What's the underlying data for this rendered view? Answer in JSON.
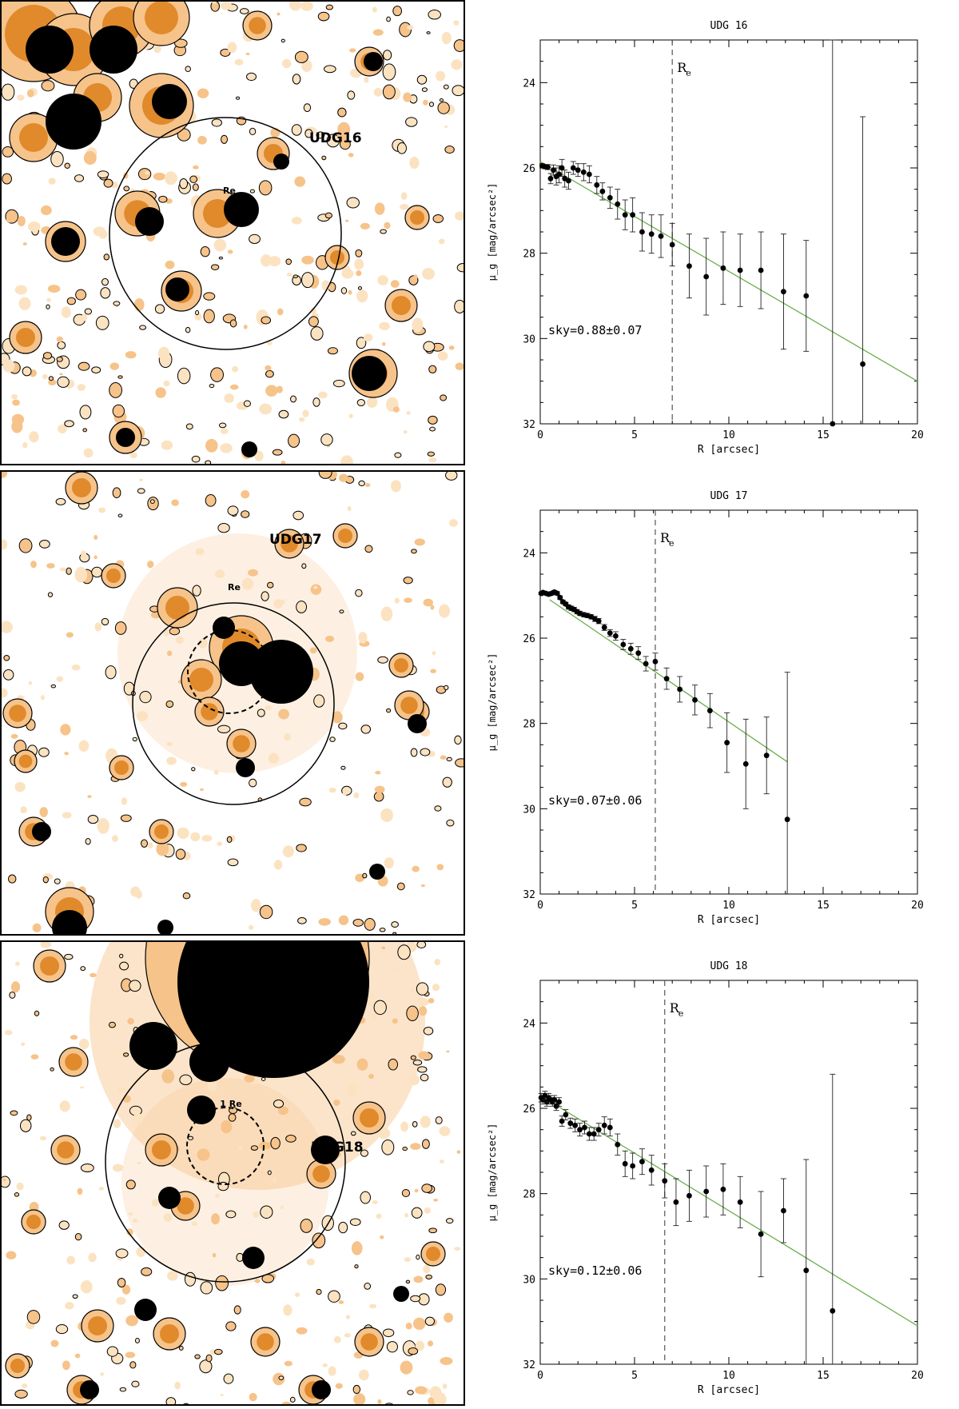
{
  "figure": {
    "colors": {
      "dark": "#000000",
      "orange": "#e08a2c",
      "light_orange": "#f6c38a",
      "pale": "#fbe3c2",
      "fit_line": "#6ab04c"
    },
    "image_panels": [
      {
        "label": "UDG16",
        "re_label": "Re",
        "dashed_circle": false
      },
      {
        "label": "UDG17",
        "re_label": "Re",
        "dashed_circle": true
      },
      {
        "label": "UDG18",
        "re_label": "1 Re",
        "dashed_circle": true
      }
    ]
  },
  "chart_data": [
    {
      "type": "scatter",
      "title": "UDG 16",
      "xlabel": "R [arcsec]",
      "ylabel": "μ_g [mag/arcsec²]",
      "xlim": [
        0,
        20
      ],
      "ylim": [
        32,
        23
      ],
      "y_inverted": true,
      "xticks": [
        0,
        5,
        10,
        15,
        20
      ],
      "yticks": [
        24,
        26,
        28,
        30,
        32
      ],
      "re_value": 7.0,
      "re_label": "R",
      "re_sub": "e",
      "annotation": "sky=0.88±0.07",
      "fit": {
        "x": [
          0,
          20
        ],
        "y": [
          25.85,
          31.0
        ]
      },
      "points": [
        {
          "x": 0.1,
          "y": 25.95,
          "err": 0.05
        },
        {
          "x": 0.25,
          "y": 25.97,
          "err": 0.05
        },
        {
          "x": 0.4,
          "y": 25.98,
          "err": 0.06
        },
        {
          "x": 0.55,
          "y": 26.25,
          "err": 0.12
        },
        {
          "x": 0.7,
          "y": 26.05,
          "err": 0.12
        },
        {
          "x": 0.85,
          "y": 26.2,
          "err": 0.2
        },
        {
          "x": 1.0,
          "y": 26.15,
          "err": 0.2
        },
        {
          "x": 1.15,
          "y": 26.0,
          "err": 0.2
        },
        {
          "x": 1.3,
          "y": 26.25,
          "err": 0.2
        },
        {
          "x": 1.5,
          "y": 26.3,
          "err": 0.2
        },
        {
          "x": 1.75,
          "y": 26.0,
          "err": 0.15
        },
        {
          "x": 2.0,
          "y": 26.05,
          "err": 0.15
        },
        {
          "x": 2.3,
          "y": 26.1,
          "err": 0.2
        },
        {
          "x": 2.6,
          "y": 26.15,
          "err": 0.2
        },
        {
          "x": 3.0,
          "y": 26.4,
          "err": 0.2
        },
        {
          "x": 3.3,
          "y": 26.55,
          "err": 0.2
        },
        {
          "x": 3.7,
          "y": 26.7,
          "err": 0.25
        },
        {
          "x": 4.1,
          "y": 26.85,
          "err": 0.35
        },
        {
          "x": 4.5,
          "y": 27.1,
          "err": 0.35
        },
        {
          "x": 4.9,
          "y": 27.1,
          "err": 0.4
        },
        {
          "x": 5.4,
          "y": 27.5,
          "err": 0.45
        },
        {
          "x": 5.9,
          "y": 27.55,
          "err": 0.45
        },
        {
          "x": 6.4,
          "y": 27.6,
          "err": 0.5
        },
        {
          "x": 7.0,
          "y": 27.8,
          "err": 0.5
        },
        {
          "x": 7.9,
          "y": 28.3,
          "err": 0.75
        },
        {
          "x": 8.8,
          "y": 28.55,
          "err": 0.9
        },
        {
          "x": 9.7,
          "y": 28.35,
          "err": 0.85
        },
        {
          "x": 10.6,
          "y": 28.4,
          "err": 0.85
        },
        {
          "x": 11.7,
          "y": 28.4,
          "err": 0.9
        },
        {
          "x": 12.9,
          "y": 28.9,
          "err": 1.35
        },
        {
          "x": 14.1,
          "y": 29.0,
          "err": 1.3
        },
        {
          "x": 15.5,
          "y": 32.0,
          "err": 9.0
        },
        {
          "x": 17.1,
          "y": 30.6,
          "err": 5.8
        }
      ]
    },
    {
      "type": "scatter",
      "title": "UDG 17",
      "xlabel": "R [arcsec]",
      "ylabel": "μ_g [mag/arcsec²]",
      "xlim": [
        0,
        20
      ],
      "ylim": [
        32,
        23
      ],
      "y_inverted": true,
      "xticks": [
        0,
        5,
        10,
        15,
        20
      ],
      "yticks": [
        24,
        26,
        28,
        30,
        32
      ],
      "re_value": 6.1,
      "re_label": "R",
      "re_sub": "e",
      "annotation": "sky=0.07±0.06",
      "fit": {
        "x": [
          0.5,
          13.1
        ],
        "y": [
          25.1,
          28.9
        ]
      },
      "points": [
        {
          "x": 0.05,
          "y": 24.95,
          "err": 0.03
        },
        {
          "x": 0.15,
          "y": 24.93,
          "err": 0.03
        },
        {
          "x": 0.3,
          "y": 24.95,
          "err": 0.03
        },
        {
          "x": 0.45,
          "y": 24.97,
          "err": 0.04
        },
        {
          "x": 0.6,
          "y": 24.95,
          "err": 0.04
        },
        {
          "x": 0.75,
          "y": 24.92,
          "err": 0.04
        },
        {
          "x": 0.9,
          "y": 24.95,
          "err": 0.04
        },
        {
          "x": 1.05,
          "y": 25.05,
          "err": 0.04
        },
        {
          "x": 1.2,
          "y": 25.15,
          "err": 0.04
        },
        {
          "x": 1.35,
          "y": 25.2,
          "err": 0.04
        },
        {
          "x": 1.5,
          "y": 25.27,
          "err": 0.05
        },
        {
          "x": 1.65,
          "y": 25.3,
          "err": 0.05
        },
        {
          "x": 1.8,
          "y": 25.33,
          "err": 0.05
        },
        {
          "x": 1.95,
          "y": 25.38,
          "err": 0.05
        },
        {
          "x": 2.1,
          "y": 25.42,
          "err": 0.05
        },
        {
          "x": 2.3,
          "y": 25.45,
          "err": 0.05
        },
        {
          "x": 2.5,
          "y": 25.47,
          "err": 0.05
        },
        {
          "x": 2.7,
          "y": 25.5,
          "err": 0.05
        },
        {
          "x": 2.9,
          "y": 25.55,
          "err": 0.06
        },
        {
          "x": 3.1,
          "y": 25.6,
          "err": 0.06
        },
        {
          "x": 3.4,
          "y": 25.75,
          "err": 0.07
        },
        {
          "x": 3.7,
          "y": 25.88,
          "err": 0.08
        },
        {
          "x": 4.0,
          "y": 25.95,
          "err": 0.1
        },
        {
          "x": 4.4,
          "y": 26.15,
          "err": 0.12
        },
        {
          "x": 4.8,
          "y": 26.25,
          "err": 0.13
        },
        {
          "x": 5.2,
          "y": 26.35,
          "err": 0.15
        },
        {
          "x": 5.6,
          "y": 26.6,
          "err": 0.17
        },
        {
          "x": 6.1,
          "y": 26.55,
          "err": 0.2
        },
        {
          "x": 6.7,
          "y": 26.95,
          "err": 0.25
        },
        {
          "x": 7.4,
          "y": 27.2,
          "err": 0.3
        },
        {
          "x": 8.2,
          "y": 27.45,
          "err": 0.35
        },
        {
          "x": 9.0,
          "y": 27.7,
          "err": 0.4
        },
        {
          "x": 9.9,
          "y": 28.45,
          "err": 0.7
        },
        {
          "x": 10.9,
          "y": 28.95,
          "err": 1.05
        },
        {
          "x": 12.0,
          "y": 28.75,
          "err": 0.9
        },
        {
          "x": 13.1,
          "y": 30.25,
          "err": 3.45
        }
      ]
    },
    {
      "type": "scatter",
      "title": "UDG 18",
      "xlabel": "R [arcsec]",
      "ylabel": "μ_g [mag/arcsec²]",
      "xlim": [
        0,
        20
      ],
      "ylim": [
        32,
        23
      ],
      "y_inverted": true,
      "xticks": [
        0,
        5,
        10,
        15,
        20
      ],
      "yticks": [
        24,
        26,
        28,
        30,
        32
      ],
      "re_value": 6.6,
      "re_label": "R",
      "re_sub": "e",
      "annotation": "sky=0.12±0.06",
      "fit": {
        "x": [
          0,
          20
        ],
        "y": [
          25.7,
          31.1
        ]
      },
      "points": [
        {
          "x": 0.05,
          "y": 25.75,
          "err": 0.1
        },
        {
          "x": 0.15,
          "y": 25.8,
          "err": 0.1
        },
        {
          "x": 0.25,
          "y": 25.7,
          "err": 0.1
        },
        {
          "x": 0.35,
          "y": 25.85,
          "err": 0.1
        },
        {
          "x": 0.45,
          "y": 25.75,
          "err": 0.1
        },
        {
          "x": 0.55,
          "y": 25.8,
          "err": 0.1
        },
        {
          "x": 0.65,
          "y": 25.85,
          "err": 0.1
        },
        {
          "x": 0.75,
          "y": 25.8,
          "err": 0.1
        },
        {
          "x": 0.85,
          "y": 25.95,
          "err": 0.1
        },
        {
          "x": 1.0,
          "y": 25.85,
          "err": 0.1
        },
        {
          "x": 1.15,
          "y": 26.3,
          "err": 0.12
        },
        {
          "x": 1.35,
          "y": 26.15,
          "err": 0.12
        },
        {
          "x": 1.6,
          "y": 26.35,
          "err": 0.12
        },
        {
          "x": 1.85,
          "y": 26.4,
          "err": 0.15
        },
        {
          "x": 2.1,
          "y": 26.5,
          "err": 0.15
        },
        {
          "x": 2.35,
          "y": 26.45,
          "err": 0.15
        },
        {
          "x": 2.6,
          "y": 26.6,
          "err": 0.15
        },
        {
          "x": 2.85,
          "y": 26.6,
          "err": 0.15
        },
        {
          "x": 3.1,
          "y": 26.5,
          "err": 0.15
        },
        {
          "x": 3.4,
          "y": 26.4,
          "err": 0.2
        },
        {
          "x": 3.7,
          "y": 26.45,
          "err": 0.2
        },
        {
          "x": 4.1,
          "y": 26.85,
          "err": 0.25
        },
        {
          "x": 4.5,
          "y": 27.3,
          "err": 0.3
        },
        {
          "x": 4.9,
          "y": 27.35,
          "err": 0.3
        },
        {
          "x": 5.4,
          "y": 27.25,
          "err": 0.3
        },
        {
          "x": 5.9,
          "y": 27.45,
          "err": 0.35
        },
        {
          "x": 6.6,
          "y": 27.7,
          "err": 0.4
        },
        {
          "x": 7.2,
          "y": 28.2,
          "err": 0.55
        },
        {
          "x": 7.9,
          "y": 28.05,
          "err": 0.6
        },
        {
          "x": 8.8,
          "y": 27.95,
          "err": 0.6
        },
        {
          "x": 9.7,
          "y": 27.9,
          "err": 0.6
        },
        {
          "x": 10.6,
          "y": 28.2,
          "err": 0.6
        },
        {
          "x": 11.7,
          "y": 28.95,
          "err": 1.0
        },
        {
          "x": 12.9,
          "y": 28.4,
          "err": 0.75
        },
        {
          "x": 14.1,
          "y": 29.8,
          "err": 2.6
        },
        {
          "x": 15.5,
          "y": 30.75,
          "err": 5.55
        }
      ]
    }
  ]
}
